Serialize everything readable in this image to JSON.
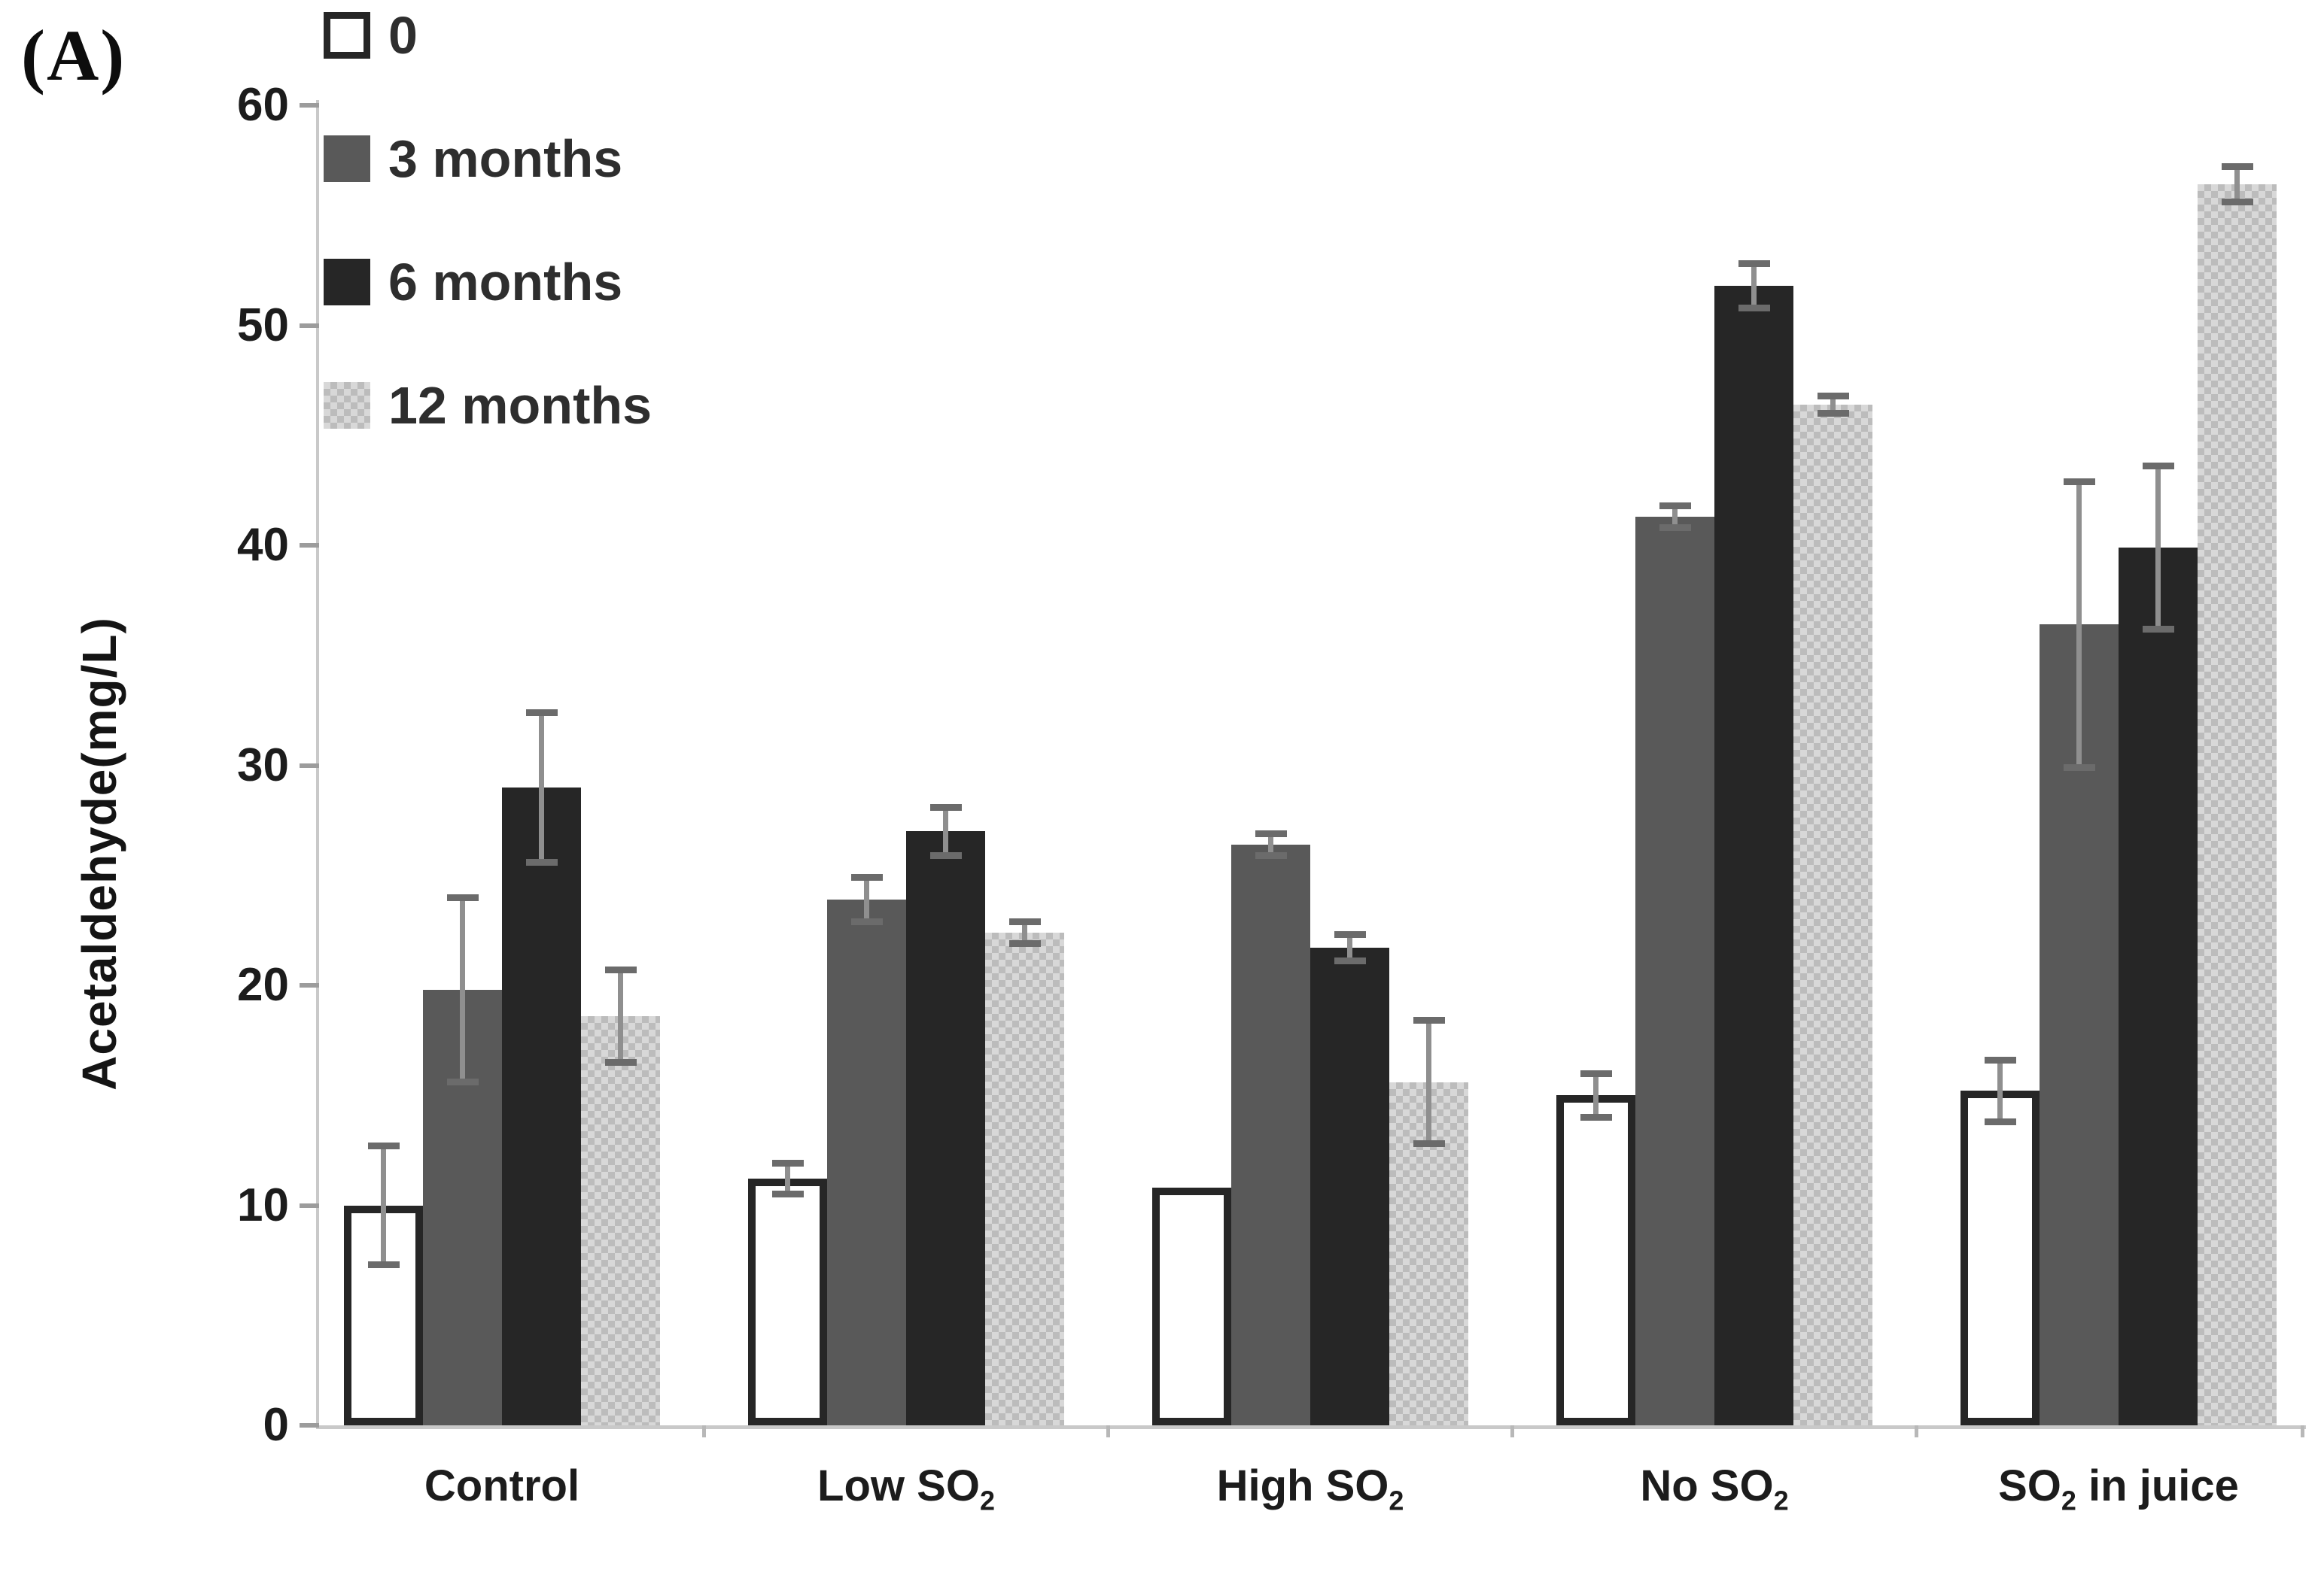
{
  "panel_label": "(A)",
  "colors": {
    "bar_series_0_fill": "#ffffff",
    "bar_series_0_border": "#262626",
    "bar_3_months": "#595959",
    "bar_6_months": "#262626",
    "bar_12_months_base": "#d8d8d8",
    "bar_12_months_pattern": "#bcbcbc",
    "error_bar": "#8f8f8f",
    "axis": "#c9c9c9",
    "tick": "#9c9c9c",
    "text": "#1c1c1c"
  },
  "chart_data": {
    "type": "bar",
    "title": "",
    "xlabel": "",
    "ylabel": "Acetaldehyde(mg/L)",
    "ylim": [
      0,
      60
    ],
    "y_ticks": [
      0,
      10,
      20,
      30,
      40,
      50,
      60
    ],
    "grid": false,
    "legend_position": "top-left-inside",
    "error_bars": true,
    "categories": [
      "Control",
      "Low SO2",
      "High SO2",
      "No SO2",
      "SO2 in juice"
    ],
    "category_label_parts": [
      {
        "before": "Control",
        "sub": "",
        "after": ""
      },
      {
        "before": "Low SO",
        "sub": "2",
        "after": ""
      },
      {
        "before": "High SO",
        "sub": "2",
        "after": ""
      },
      {
        "before": "No SO",
        "sub": "2",
        "after": ""
      },
      {
        "before": "SO",
        "sub": "2",
        "after": " in juice"
      }
    ],
    "series": [
      {
        "name": "0",
        "swatch": "white-outline",
        "values": [
          10.0,
          11.2,
          10.8,
          15.0,
          15.2
        ],
        "errors": [
          2.7,
          0.7,
          0,
          1.0,
          1.4
        ]
      },
      {
        "name": "3 months",
        "swatch": "dark-gray",
        "values": [
          19.8,
          23.9,
          26.4,
          41.3,
          36.4
        ],
        "errors": [
          4.2,
          1.0,
          0.5,
          0.5,
          6.5
        ]
      },
      {
        "name": "6 months",
        "swatch": "black",
        "values": [
          29.0,
          27.0,
          21.7,
          51.8,
          39.9
        ],
        "errors": [
          3.4,
          1.1,
          0.6,
          1.0,
          3.7
        ]
      },
      {
        "name": "12 months",
        "swatch": "light-gray-pattern",
        "values": [
          18.6,
          22.4,
          15.6,
          46.4,
          56.4
        ],
        "errors": [
          2.1,
          0.5,
          2.8,
          0.4,
          0.8
        ]
      }
    ]
  }
}
